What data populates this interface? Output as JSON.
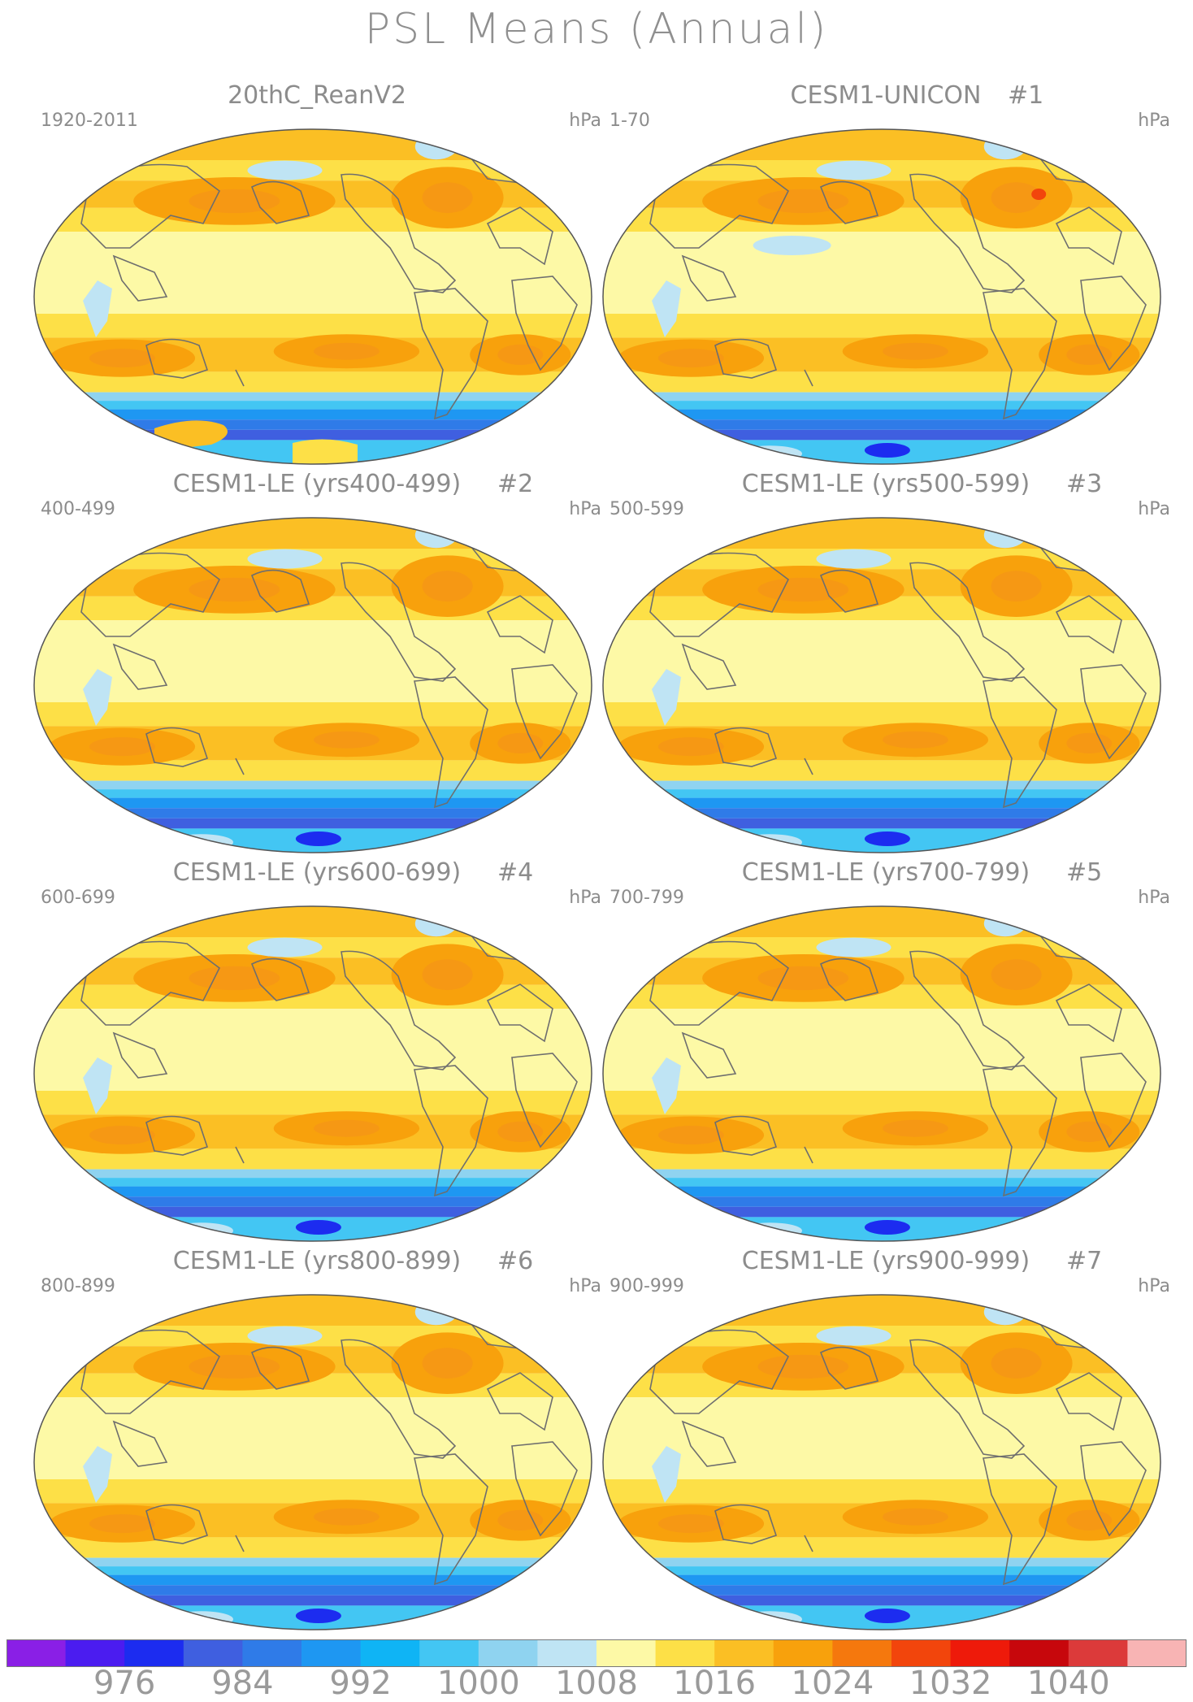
{
  "figure": {
    "title": "PSL Means (Annual)",
    "units": "hPa"
  },
  "panels": [
    {
      "title": "20thC_ReanV2",
      "number": "",
      "years": "1920-2011",
      "variant": "obs"
    },
    {
      "title": "CESM1-UNICON",
      "number": "#1",
      "years": "1-70",
      "variant": "unicon"
    },
    {
      "title": "CESM1-LE (yrs400-499)",
      "number": "#2",
      "years": "400-499",
      "variant": "le"
    },
    {
      "title": "CESM1-LE (yrs500-599)",
      "number": "#3",
      "years": "500-599",
      "variant": "le"
    },
    {
      "title": "CESM1-LE (yrs600-699)",
      "number": "#4",
      "years": "600-699",
      "variant": "le"
    },
    {
      "title": "CESM1-LE (yrs700-799)",
      "number": "#5",
      "years": "700-799",
      "variant": "le"
    },
    {
      "title": "CESM1-LE (yrs800-899)",
      "number": "#6",
      "years": "800-899",
      "variant": "le"
    },
    {
      "title": "CESM1-LE (yrs900-999)",
      "number": "#7",
      "years": "900-999",
      "variant": "le"
    }
  ],
  "colorbar": {
    "labels": [
      "976",
      "984",
      "992",
      "1000",
      "1008",
      "1016",
      "1024",
      "1032",
      "1040"
    ],
    "colors": [
      "#8a1fe6",
      "#4b1cf0",
      "#1c2cf0",
      "#3f5fe0",
      "#2f7be8",
      "#1e97f2",
      "#0fb4f5",
      "#43c6f3",
      "#8fd3f0",
      "#bfe4f4",
      "#fdf9a6",
      "#fde047",
      "#fbbf24",
      "#f8a10c",
      "#f5780d",
      "#f2450c",
      "#ee1a0a",
      "#c7070c",
      "#dc3a3a",
      "#f8b4b4"
    ]
  }
}
